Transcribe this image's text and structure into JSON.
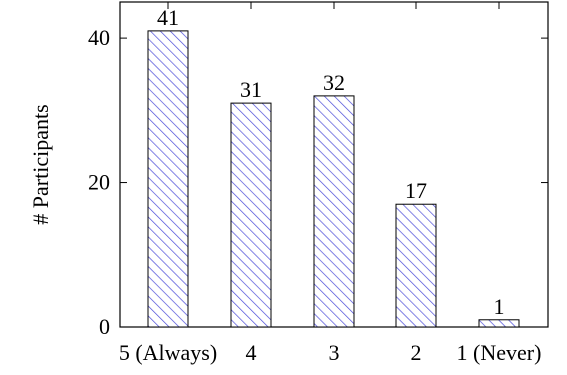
{
  "chart_data": {
    "type": "bar",
    "categories": [
      "5 (Always)",
      "4",
      "3",
      "2",
      "1 (Never)"
    ],
    "values": [
      41,
      31,
      32,
      17,
      1
    ],
    "value_labels": [
      "41",
      "31",
      "32",
      "17",
      "1"
    ],
    "title": "",
    "xlabel": "",
    "ylabel": "# Participants",
    "ylim": [
      0,
      45
    ],
    "yticks": [
      0,
      20,
      40
    ],
    "ytick_labels": [
      "0",
      "20",
      "40"
    ],
    "grid": false,
    "bar_fill": "hatched",
    "colors": {
      "bar_hatch": "#4b4bd9",
      "bar_edge": "#000000",
      "axis": "#000000"
    }
  }
}
